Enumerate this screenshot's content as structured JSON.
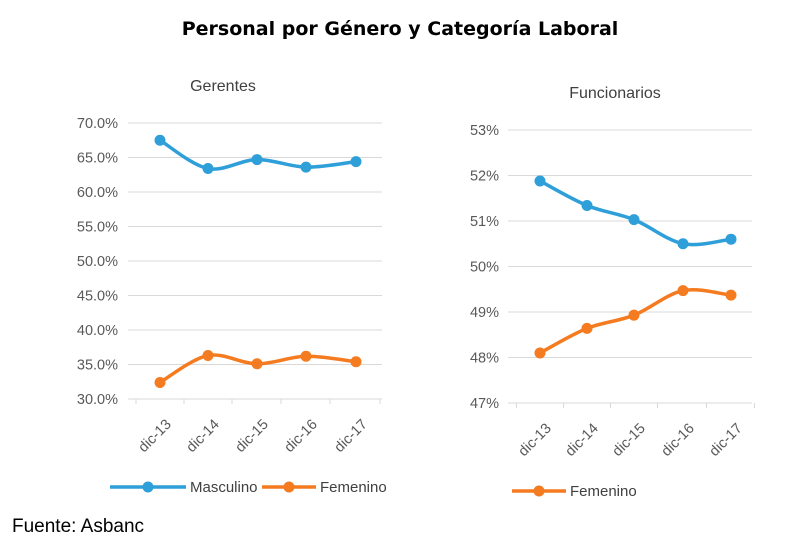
{
  "title": "Personal por Género y Categoría Laboral",
  "source": "Fuente: Asbanc",
  "colors": {
    "masculino": "#2E9FD8",
    "femenino": "#F47B20",
    "grid": "#d9d9d9"
  },
  "chart_data": [
    {
      "type": "line",
      "title": "Gerentes",
      "categories": [
        "dic-13",
        "dic-14",
        "dic-15",
        "dic-16",
        "dic-17"
      ],
      "yticks": [
        "30.0%",
        "35.0%",
        "40.0%",
        "45.0%",
        "50.0%",
        "55.0%",
        "60.0%",
        "65.0%",
        "70.0%"
      ],
      "ylim": [
        30,
        70
      ],
      "grid": true,
      "legend": "bottom",
      "series": [
        {
          "name": "Masculino",
          "values": [
            67.5,
            63.4,
            64.7,
            63.6,
            64.4
          ]
        },
        {
          "name": "Femenino",
          "values": [
            32.4,
            36.3,
            35.1,
            36.2,
            35.4
          ]
        }
      ]
    },
    {
      "type": "line",
      "title": "Funcionarios",
      "categories": [
        "dic-13",
        "dic-14",
        "dic-15",
        "dic-16",
        "dic-17"
      ],
      "yticks": [
        "47%",
        "48%",
        "49%",
        "50%",
        "51%",
        "52%",
        "53%"
      ],
      "ylim": [
        47,
        53
      ],
      "grid": true,
      "legend": "bottom",
      "series": [
        {
          "name": "",
          "values": [
            51.88,
            51.34,
            51.03,
            50.5,
            50.6
          ]
        },
        {
          "name": "Femenino",
          "values": [
            48.1,
            48.64,
            48.93,
            49.47,
            49.37
          ]
        }
      ]
    }
  ]
}
